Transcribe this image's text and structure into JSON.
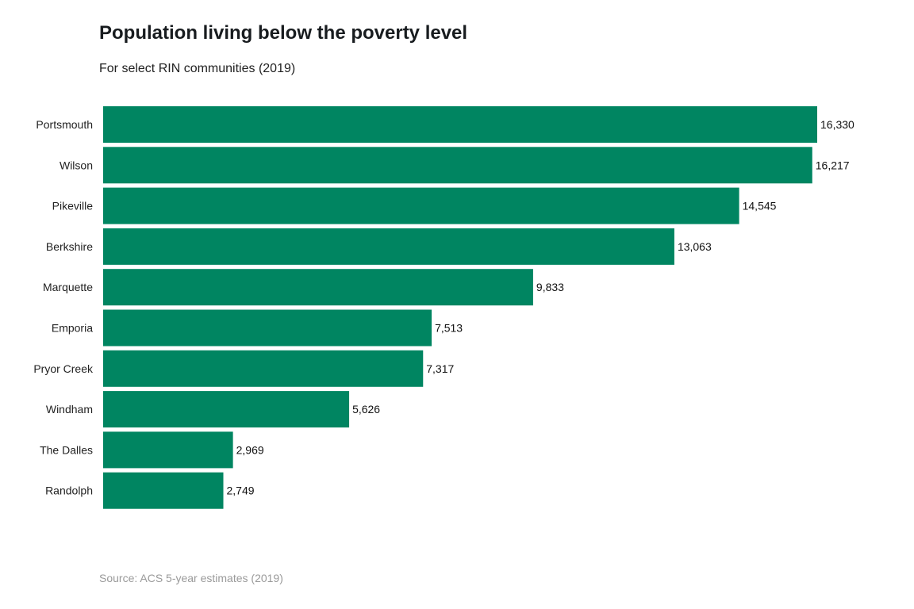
{
  "chart_data": {
    "type": "bar",
    "orientation": "horizontal",
    "title": "Population living below the poverty level",
    "subtitle": "For select RIN communities (2019)",
    "source": "Source: ACS 5-year estimates (2019)",
    "categories": [
      "Portsmouth",
      "Wilson",
      "Pikeville",
      "Berkshire",
      "Marquette",
      "Emporia",
      "Pryor Creek",
      "Windham",
      "The Dalles",
      "Randolph"
    ],
    "values": [
      16330,
      16217,
      14545,
      13063,
      9833,
      7513,
      7317,
      5626,
      2969,
      2749
    ],
    "value_labels": [
      "16,330",
      "16,217",
      "14,545",
      "13,063",
      "9,833",
      "7,513",
      "7,317",
      "5,626",
      "2,969",
      "2,749"
    ],
    "xlim": [
      0,
      16330
    ],
    "grid": false,
    "legend": "none",
    "bar_color": "#008561"
  }
}
